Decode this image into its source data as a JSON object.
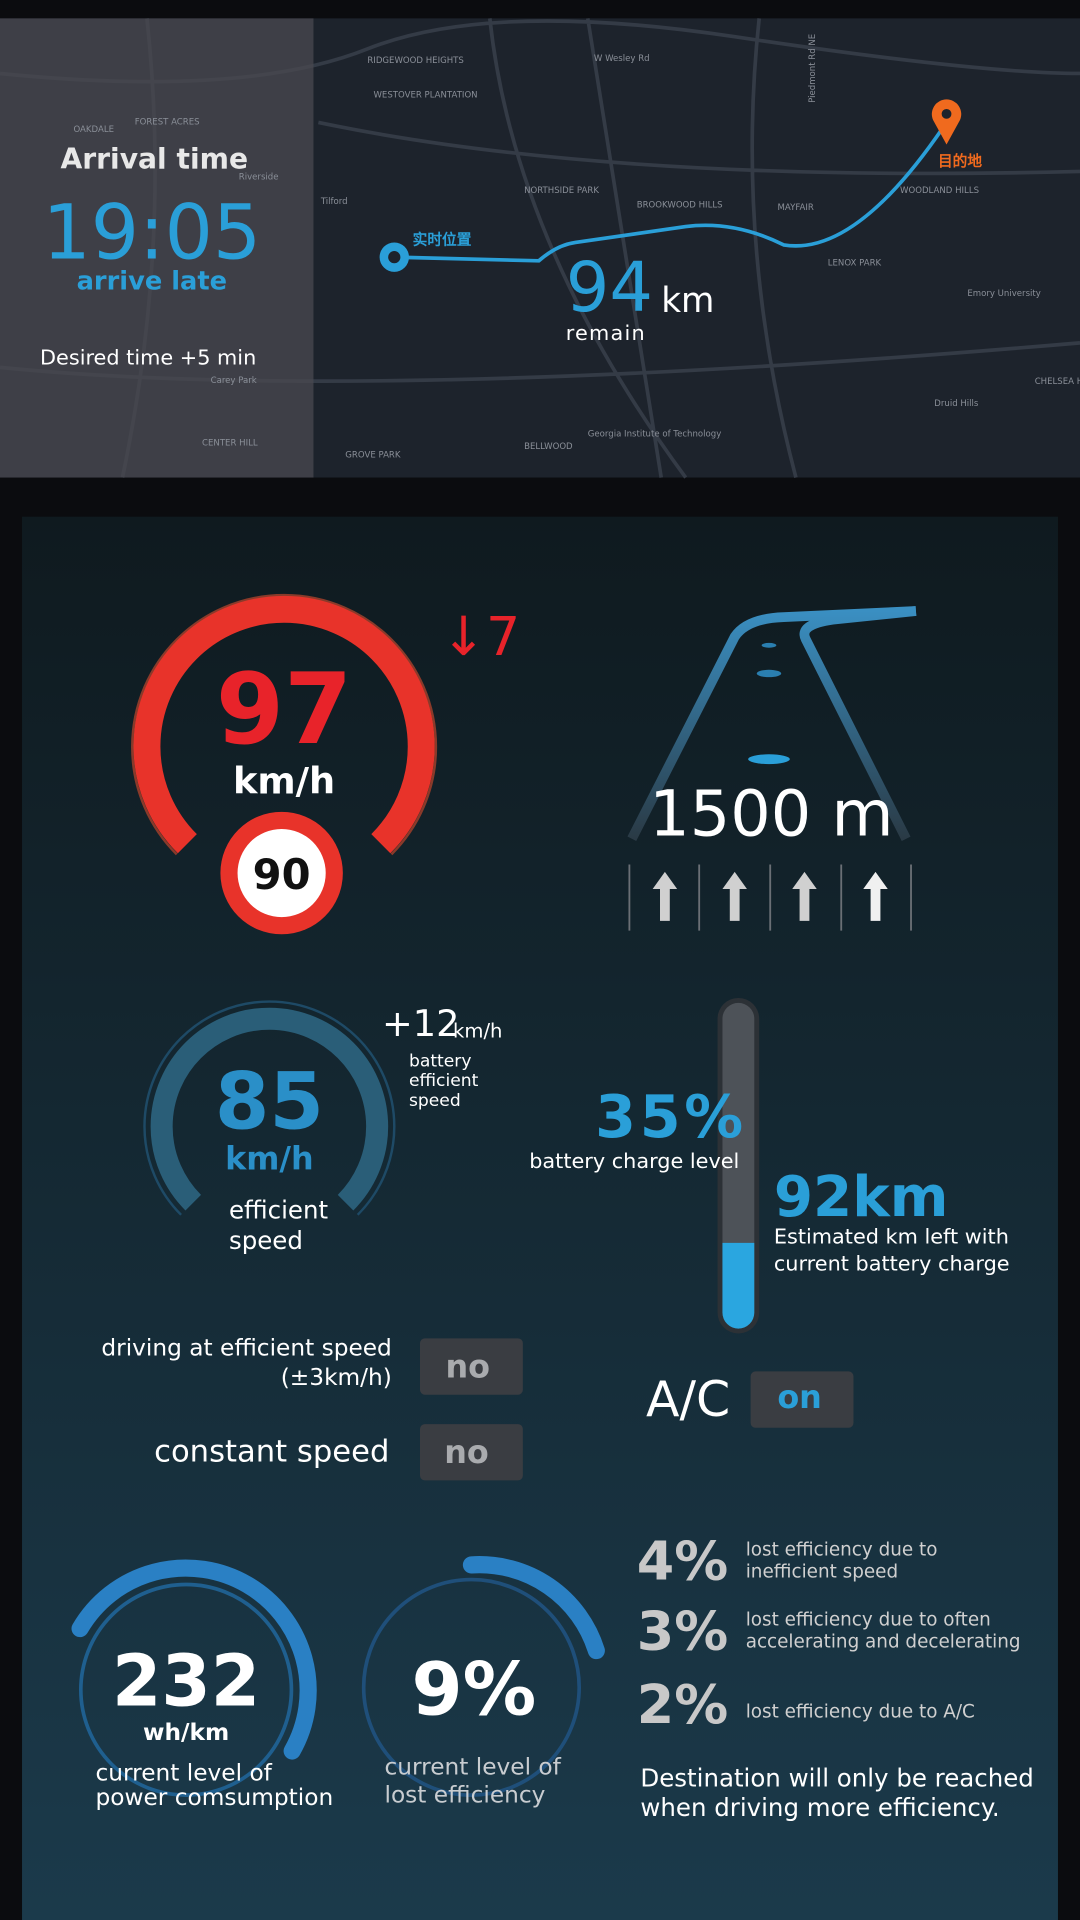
{
  "map": {
    "labels": [
      "RIDGEWOOD HEIGHTS",
      "WESTOVER PLANTATION",
      "W Wesley Rd",
      "NORTHSIDE PARK",
      "BROOKWOOD HILLS",
      "MAYFAIR",
      "WOODLAND HILLS",
      "LENOX PARK",
      "Emory University",
      "Druid Hills",
      "CHELSEA HEIGHTS",
      "Georgia Institute of Technology",
      "GROVE PARK",
      "BELLWOOD",
      "Piedmont Rd NE",
      "Tilford",
      "OAKDALE",
      "FOREST ACRES",
      "Riverside",
      "Carey Park",
      "CENTER HILL"
    ],
    "current_position": "实时位置",
    "destination": "目的地",
    "distance_value": "94",
    "distance_unit": "km",
    "distance_label": "remain"
  },
  "arrival": {
    "title": "Arrival time",
    "time": "19:05",
    "status": "arrive late",
    "note": "Desired time +5 min"
  },
  "speed": {
    "value": "97",
    "unit": "km/h",
    "limit": "90",
    "delta": "↓7"
  },
  "navigation": {
    "distance": "1500 m"
  },
  "efficient_speed": {
    "value": "85",
    "unit": "km/h",
    "label": [
      "efficient",
      "speed"
    ],
    "delta_value": "+12",
    "delta_unit": "km/h",
    "delta_label": [
      "battery",
      "efficient",
      "speed"
    ]
  },
  "battery": {
    "level": "35%",
    "level_label": "battery charge level",
    "range": "92km",
    "range_label": [
      "Estimated km left with",
      "current battery charge"
    ]
  },
  "status": {
    "efficient_driving_label": [
      "driving at efficient speed",
      "(±3km/h)"
    ],
    "efficient_driving": "no",
    "constant_speed_label": "constant speed",
    "constant_speed": "no",
    "ac_label": "A/C",
    "ac": "on"
  },
  "power": {
    "value": "232",
    "unit": "wh/km",
    "label": [
      "current level of",
      "power comsumption"
    ]
  },
  "lost_efficiency": {
    "value": "9%",
    "label": [
      "current level of",
      "lost efficiency"
    ],
    "items": [
      {
        "value": "4%",
        "label": [
          "lost efficiency due to",
          "inefficient speed"
        ]
      },
      {
        "value": "3%",
        "label": [
          "lost efficiency due to often",
          "accelerating and decelerating"
        ]
      },
      {
        "value": "2%",
        "label": [
          "lost efficiency due to A/C"
        ]
      }
    ]
  },
  "message": [
    "Destination will only be reached",
    "when driving more efficiency."
  ]
}
